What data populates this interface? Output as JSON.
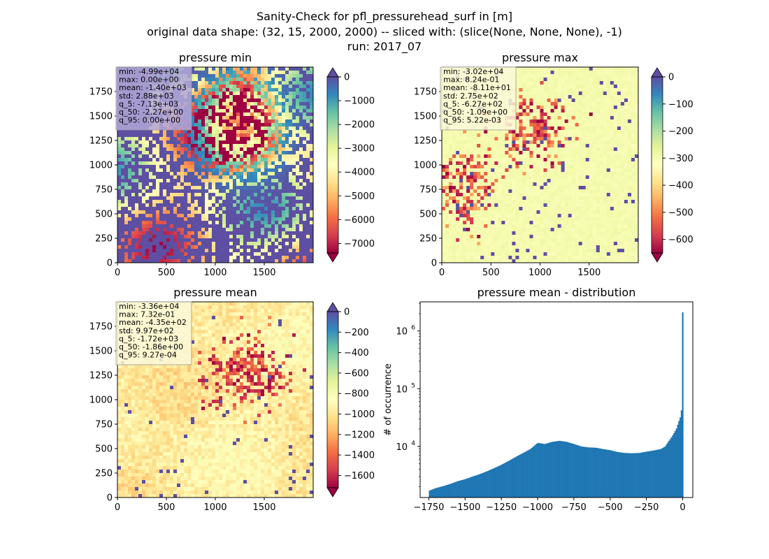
{
  "figure": {
    "title_lines": [
      "Sanity-Check for pfl_pressurehead_surf in [m]",
      "original data shape: (32, 15, 2000, 2000) -- sliced with: (slice(None, None, None), -1)",
      "run: 2017_07"
    ]
  },
  "chart_data": [
    {
      "type": "heatmap",
      "title": "pressure min",
      "colormap": "Spectral",
      "xlim": [
        0,
        2000
      ],
      "ylim": [
        0,
        2000
      ],
      "xticks": [
        0,
        500,
        1000,
        1500
      ],
      "yticks": [
        0,
        250,
        500,
        750,
        1000,
        1250,
        1500,
        1750
      ],
      "colorbar": {
        "vmin": -7400,
        "vmax": 0,
        "ticks": [
          0,
          -1000,
          -2000,
          -3000,
          -4000,
          -5000,
          -6000,
          -7000
        ],
        "extend": "both",
        "over_color": "#5e4fa2",
        "under_color": "#9e0142"
      },
      "stats_box_bg": "#b3a8d8",
      "stats": [
        "min: -4.99e+04",
        "max: 0.00e+00",
        "mean: -1.40e+03",
        "std: 2.88e+03",
        "q_5: -7.13e+03",
        "q_50: -2.27e+00",
        "q_95: 0.00e+00"
      ]
    },
    {
      "type": "heatmap",
      "title": "pressure max",
      "colormap": "Spectral",
      "xlim": [
        0,
        2000
      ],
      "ylim": [
        0,
        2000
      ],
      "xticks": [
        0,
        500,
        1000,
        1500
      ],
      "yticks": [
        0,
        250,
        500,
        750,
        1000,
        1250,
        1500,
        1750
      ],
      "colorbar": {
        "vmin": -650,
        "vmax": 0,
        "ticks": [
          0,
          -100,
          -200,
          -300,
          -400,
          -500,
          -600
        ],
        "extend": "both",
        "over_color": "#5e4fa2",
        "under_color": "#9e0142"
      },
      "stats_box_bg": "#fcf8d8",
      "stats": [
        "min: -3.02e+04",
        "max: 8.24e-01",
        "mean: -8.11e+01",
        "std: 2.75e+02",
        "q_5: -6.27e+02",
        "q_50: -1.09e+00",
        "q_95: 5.22e-03"
      ]
    },
    {
      "type": "heatmap",
      "title": "pressure mean",
      "colormap": "Spectral",
      "xlim": [
        0,
        2000
      ],
      "ylim": [
        0,
        2000
      ],
      "xticks": [
        0,
        500,
        1000,
        1500
      ],
      "yticks": [
        0,
        250,
        500,
        750,
        1000,
        1250,
        1500,
        1750
      ],
      "colorbar": {
        "vmin": -1720,
        "vmax": 0,
        "ticks": [
          0,
          -200,
          -400,
          -600,
          -800,
          -1000,
          -1200,
          -1400,
          -1600
        ],
        "extend": "both",
        "over_color": "#5e4fa2",
        "under_color": "#9e0142"
      },
      "stats_box_bg": "#fcf8d8",
      "stats": [
        "min: -3.36e+04",
        "max: 7.32e-01",
        "mean: -4.35e+02",
        "std: 9.97e+02",
        "q_5: -1.72e+03",
        "q_50: -1.86e+00",
        "q_95: 9.27e-04"
      ]
    },
    {
      "type": "bar",
      "title": "pressure mean - distribution",
      "ylabel": "# of occurrence",
      "yscale": "log",
      "color": "#1f77b4",
      "xlim": [
        -1810,
        70
      ],
      "ylim": [
        1300,
        3200000
      ],
      "xticks": [
        -1750,
        -1500,
        -1250,
        -1000,
        -750,
        -500,
        -250,
        0
      ],
      "xtick_labels": [
        "−1750",
        "−1500",
        "−1250",
        "−1000",
        "−750",
        "−500",
        "−250",
        "0"
      ],
      "yticks": [
        {
          "value": 10000,
          "base": "10",
          "exp": "4"
        },
        {
          "value": 100000,
          "base": "10",
          "exp": "5"
        },
        {
          "value": 1000000,
          "base": "10",
          "exp": "6"
        }
      ],
      "bin_width": 8.6,
      "x": [
        -1750,
        -1700,
        -1650,
        -1600,
        -1550,
        -1500,
        -1450,
        -1400,
        -1350,
        -1300,
        -1250,
        -1200,
        -1150,
        -1100,
        -1050,
        -1000,
        -950,
        -900,
        -850,
        -800,
        -750,
        -700,
        -650,
        -600,
        -550,
        -500,
        -450,
        -400,
        -350,
        -300,
        -250,
        -200,
        -150,
        -120,
        -100,
        -80,
        -60,
        -40,
        -30,
        -20,
        -15,
        -10,
        -6,
        -4,
        -2,
        0
      ],
      "values": [
        1700,
        1900,
        2050,
        2250,
        2500,
        2700,
        3000,
        3300,
        3700,
        4200,
        4800,
        5600,
        6600,
        7700,
        9000,
        11500,
        11000,
        12000,
        12500,
        12000,
        11000,
        10000,
        9600,
        9500,
        9000,
        8600,
        8000,
        7700,
        7600,
        7700,
        8100,
        8500,
        9000,
        10000,
        12000,
        14000,
        17000,
        21000,
        26000,
        30000,
        33000,
        40000,
        46000,
        42000,
        43000,
        2100000
      ]
    }
  ]
}
